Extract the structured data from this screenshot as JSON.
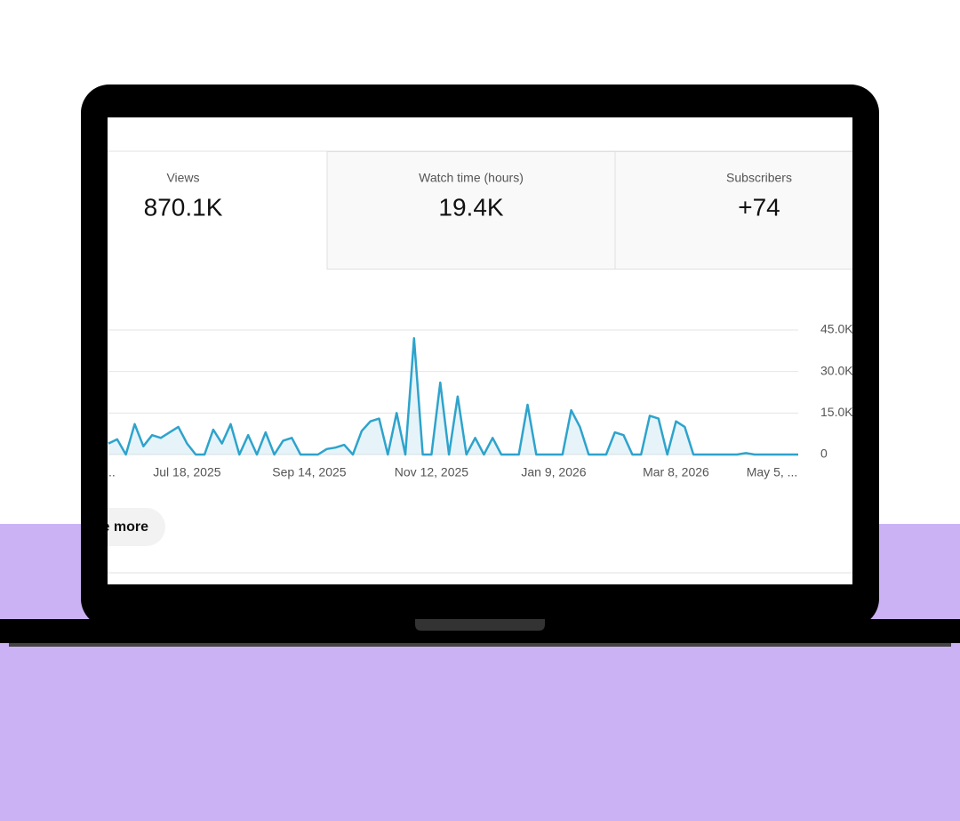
{
  "metrics": [
    {
      "label": "Views",
      "value": "870.1K"
    },
    {
      "label": "Watch time (hours)",
      "value": "19.4K"
    },
    {
      "label": "Subscribers",
      "value": "+74"
    }
  ],
  "button": "See more",
  "chart_data": {
    "type": "line",
    "categories": [
      ",...",
      null,
      null,
      null,
      null,
      null,
      null,
      null,
      null,
      "Jul 18, 2025",
      null,
      null,
      null,
      null,
      null,
      null,
      null,
      null,
      null,
      null,
      null,
      null,
      null,
      "Sep 14, 2025",
      null,
      null,
      null,
      null,
      null,
      null,
      null,
      null,
      null,
      null,
      null,
      null,
      null,
      "Nov 12, 2025",
      null,
      null,
      null,
      null,
      null,
      null,
      null,
      null,
      null,
      null,
      null,
      null,
      null,
      "Jan 9, 2026",
      null,
      null,
      null,
      null,
      null,
      null,
      null,
      null,
      null,
      null,
      null,
      null,
      null,
      "Mar 8, 2026",
      null,
      null,
      null,
      null,
      null,
      null,
      null,
      null,
      null,
      null,
      "May 5, ...",
      null,
      null,
      null
    ],
    "series": [
      {
        "name": "Views",
        "color": "#2ea3cc",
        "values": [
          4000,
          5500,
          0,
          11000,
          3000,
          7000,
          6000,
          8000,
          10000,
          4000,
          0,
          0,
          9000,
          4000,
          11000,
          0,
          7000,
          0,
          8000,
          0,
          5000,
          6000,
          0,
          0,
          0,
          2000,
          2500,
          3500,
          0,
          8500,
          12000,
          13000,
          0,
          15000,
          0,
          42000,
          0,
          0,
          26000,
          0,
          21000,
          0,
          6000,
          0,
          6000,
          0,
          0,
          0,
          18000,
          0,
          0,
          0,
          0,
          16000,
          10000,
          0,
          0,
          0,
          8000,
          7000,
          0,
          0,
          14000,
          13000,
          0,
          12000,
          10000,
          0,
          0,
          0,
          0,
          0,
          0,
          500,
          0,
          0,
          0,
          0,
          0,
          0
        ]
      }
    ],
    "ylim": [
      0,
      45000
    ],
    "yticks": [
      0,
      {
        "value": 15000,
        "label": "15.0K"
      },
      {
        "value": 30000,
        "label": "30.0K"
      },
      {
        "value": 45000,
        "label": "45.0K"
      }
    ],
    "grid": true
  }
}
